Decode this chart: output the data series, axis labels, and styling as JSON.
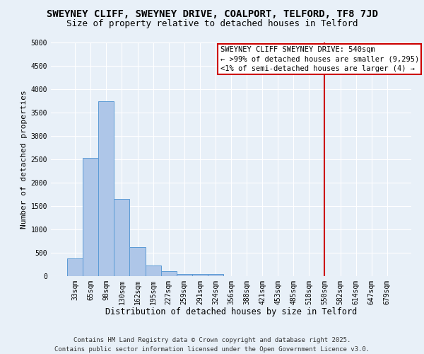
{
  "title": "SWEYNEY CLIFF, SWEYNEY DRIVE, COALPORT, TELFORD, TF8 7JD",
  "subtitle": "Size of property relative to detached houses in Telford",
  "xlabel": "Distribution of detached houses by size in Telford",
  "ylabel": "Number of detached properties",
  "bar_categories": [
    "33sqm",
    "65sqm",
    "98sqm",
    "130sqm",
    "162sqm",
    "195sqm",
    "227sqm",
    "259sqm",
    "291sqm",
    "324sqm",
    "356sqm",
    "388sqm",
    "421sqm",
    "453sqm",
    "485sqm",
    "518sqm",
    "550sqm",
    "582sqm",
    "614sqm",
    "647sqm",
    "679sqm"
  ],
  "bar_values": [
    375,
    2525,
    3750,
    1650,
    625,
    225,
    100,
    50,
    50,
    50,
    0,
    0,
    0,
    0,
    0,
    0,
    0,
    0,
    0,
    0,
    0
  ],
  "bar_color": "#aec6e8",
  "bar_edgecolor": "#5b9bd5",
  "background_color": "#e8f0f8",
  "vline_x_index": 16,
  "vline_color": "#cc0000",
  "annotation_text": "SWEYNEY CLIFF SWEYNEY DRIVE: 540sqm\n← >99% of detached houses are smaller (9,295)\n<1% of semi-detached houses are larger (4) →",
  "annotation_box_facecolor": "#ffffff",
  "annotation_box_edgecolor": "#cc0000",
  "ylim": [
    0,
    5000
  ],
  "yticks": [
    0,
    500,
    1000,
    1500,
    2000,
    2500,
    3000,
    3500,
    4000,
    4500,
    5000
  ],
  "footer_text": "Contains HM Land Registry data © Crown copyright and database right 2025.\nContains public sector information licensed under the Open Government Licence v3.0.",
  "title_fontsize": 10,
  "subtitle_fontsize": 9,
  "xlabel_fontsize": 8.5,
  "ylabel_fontsize": 8,
  "tick_fontsize": 7,
  "annotation_fontsize": 7.5,
  "footer_fontsize": 6.5,
  "grid_color": "#ffffff"
}
